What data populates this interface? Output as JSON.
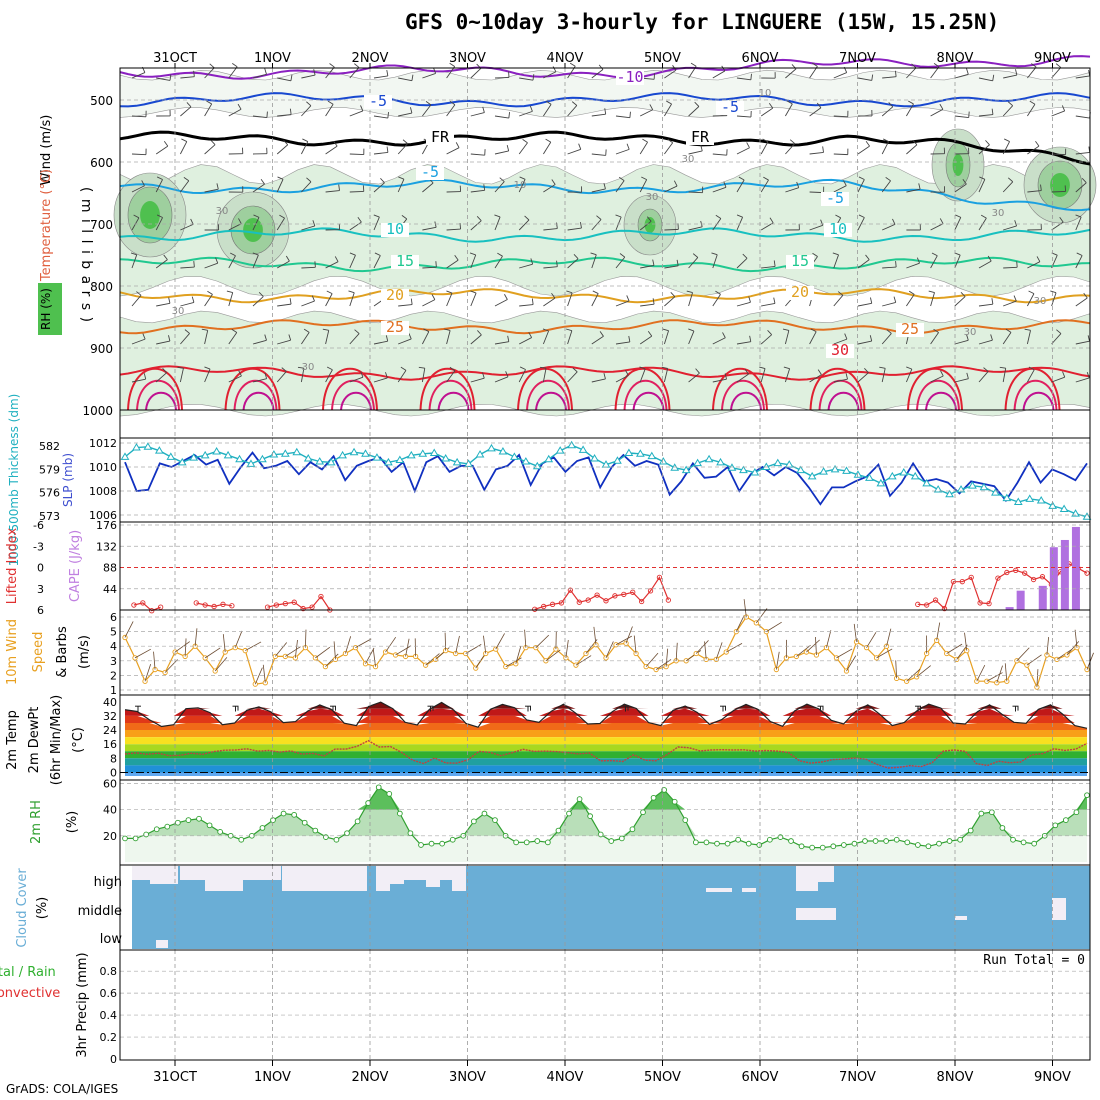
{
  "title": "GFS 0~10day 3-hourly for LINGUERE (15W, 15.25N)",
  "credit": "GrADS: COLA/IGES",
  "x_axis": {
    "labels": [
      "31OCT",
      "1NOV",
      "2NOV",
      "3NOV",
      "4NOV",
      "5NOV",
      "6NOV",
      "7NOV",
      "8NOV",
      "9NOV"
    ]
  },
  "colors": {
    "wind_barb": "#444444",
    "rh_fill": "#dff0df",
    "rh_fill2": "#b8ddb8",
    "rh_fill3": "#4fc04f",
    "slp": "#1030c0",
    "thickness": "#20b0c0",
    "lifted_index": "#e03030",
    "cape": "#b070e0",
    "wind_speed": "#e8a020",
    "dewpoint": "#c04040",
    "rh2m": "#30a030",
    "cloud": "#6aaed6",
    "cloud_gap": "#f2eef6"
  },
  "chart_data": [
    {
      "id": "upper-air",
      "type": "contour",
      "ylabel": "Wind (m/s)",
      "ylabel_parts": [
        "RH (%)",
        "Temperature (°C)",
        "Wind (m/s)",
        "( m i l l i b a r s )"
      ],
      "y_ticks": [
        500,
        600,
        700,
        800,
        900,
        1000
      ],
      "ylim": [
        450,
        1000
      ],
      "temperature_contours": [
        {
          "label": "-10",
          "level_mb": 455
        },
        {
          "label": "-5",
          "level_mb": 500
        },
        {
          "label": "FR",
          "level_mb": 563
        },
        {
          "label": "-5",
          "level_mb": 640
        },
        {
          "label": "10",
          "level_mb": 718
        },
        {
          "label": "15",
          "level_mb": 765
        },
        {
          "label": "20",
          "level_mb": 815
        },
        {
          "label": "25",
          "level_mb": 865
        },
        {
          "label": "30",
          "level_mb": 940
        }
      ],
      "rh_labels": [
        "30",
        "30",
        "10",
        "30",
        "30",
        "30",
        "30",
        "10",
        "30",
        "30"
      ]
    },
    {
      "id": "slp-thickness",
      "type": "line",
      "ylabel_left": "1000-500mb Thickness (dm)",
      "ylabel_right": "SLP (mb)",
      "left_ticks": [
        582,
        579,
        576,
        573
      ],
      "right_ticks": [
        1012,
        1010,
        1008,
        1006
      ],
      "ylim": [
        1006,
        1012
      ],
      "series": [
        {
          "name": "SLP (mb)",
          "values": [
            1010.4,
            1008.0,
            1008.1,
            1010.3,
            1010.0,
            1010.5,
            1011.0,
            1010.2,
            1010.6,
            1008.6,
            1010.0,
            1011.2,
            1009.9,
            1010.1,
            1010.5,
            1009.4,
            1010.4,
            1009.8,
            1010.9,
            1008.9,
            1010.1,
            1010.5,
            1010.8,
            1009.6,
            1010.4,
            1008.0,
            1010.4,
            1010.9,
            1009.6,
            1010.1,
            1010.1,
            1008.1,
            1009.8,
            1010.1,
            1011.0,
            1008.5,
            1010.3,
            1010.8,
            1009.6,
            1010.5,
            1010.8,
            1008.3,
            1010.0,
            1011.0,
            1010.1,
            1010.5,
            1010.2,
            1007.7,
            1008.8,
            1010.3,
            1009.1,
            1009.2,
            1010.0,
            1008.0,
            1009.4,
            1010.0,
            1009.3,
            1010.0,
            1009.5,
            1008.3,
            1006.9,
            1008.3,
            1008.3,
            1008.8,
            1009.2,
            1010.2,
            1007.6,
            1008.7,
            1010.3,
            1008.8,
            1009.0,
            1008.7,
            1007.8,
            1008.8,
            1008.6,
            1008.4,
            1007.2,
            1008.7,
            1010.4,
            1008.7,
            1009.8,
            1009.4,
            1008.9,
            1010.3
          ]
        },
        {
          "name": "1000-500mb Thickness (dm)",
          "values": [
            580.6,
            581.8,
            581.9,
            581.4,
            580.6,
            579.9,
            580.5,
            580.8,
            581.3,
            580.8,
            580.3,
            579.7,
            580.3,
            580.9,
            581.0,
            581.2,
            580.4,
            580.0,
            579.9,
            580.8,
            581.2,
            581.0,
            580.5,
            579.9,
            580.2,
            580.8,
            581.0,
            581.1,
            580.4,
            579.9,
            579.7,
            580.9,
            581.7,
            581.3,
            580.6,
            580.0,
            579.4,
            580.3,
            581.4,
            582.1,
            581.5,
            580.4,
            579.6,
            580.1,
            581.1,
            581.0,
            580.7,
            580.0,
            579.2,
            578.9,
            579.8,
            580.3,
            579.9,
            579.2,
            578.9,
            578.6,
            579.3,
            579.8,
            579.6,
            578.9,
            578.1,
            578.7,
            579.0,
            578.8,
            578.3,
            577.9,
            577.2,
            578.1,
            578.6,
            578.1,
            577.2,
            576.4,
            575.8,
            576.4,
            576.9,
            576.7,
            576.0,
            575.3,
            574.8,
            575.2,
            575.0,
            574.3,
            573.9,
            573.3,
            572.9
          ]
        }
      ]
    },
    {
      "id": "lifted-cape",
      "type": "line+bar",
      "ylabel_left": "Lifted Index",
      "ylabel_right": "CAPE (J/kg)",
      "left_ticks": [
        "6",
        "3",
        "0",
        "-3",
        "-6"
      ],
      "right_ticks": [
        176,
        132,
        88,
        44
      ],
      "series": [
        {
          "name": "Lifted Index",
          "values": [
            null,
            5.3,
            5.0,
            6.1,
            5.6,
            null,
            null,
            null,
            5.0,
            5.3,
            5.5,
            5.2,
            5.4,
            null,
            null,
            null,
            5.6,
            5.3,
            5.1,
            4.9,
            5.8,
            5.6,
            4.1,
            6.0,
            null,
            null,
            null,
            null,
            null,
            null,
            null,
            null,
            null,
            null,
            null,
            null,
            null,
            null,
            null,
            null,
            null,
            null,
            null,
            null,
            null,
            null,
            5.9,
            5.5,
            5.2,
            5.0,
            3.2,
            4.9,
            4.6,
            3.9,
            4.7,
            4.0,
            3.8,
            3.5,
            4.8,
            3.3,
            1.4,
            4.6,
            null,
            null,
            null,
            null,
            null,
            null,
            null,
            null,
            null,
            null,
            null,
            null,
            null,
            null,
            null,
            null,
            null,
            null,
            null,
            null,
            null,
            null,
            null,
            null,
            null,
            null,
            null,
            5.2,
            5.3,
            4.6,
            5.8,
            2.0,
            2.0,
            1.4,
            5.0,
            5.1,
            1.5,
            0.7,
            0.4,
            0.8,
            1.7,
            1.3,
            2.4,
            0.6,
            -0.5,
            0.1,
            0.8
          ]
        },
        {
          "name": "CAPE (J/kg)",
          "values": [
            null,
            null,
            null,
            null,
            null,
            null,
            null,
            null,
            null,
            null,
            null,
            null,
            null,
            null,
            null,
            null,
            null,
            null,
            null,
            null,
            null,
            null,
            null,
            null,
            null,
            null,
            null,
            null,
            null,
            null,
            null,
            null,
            null,
            null,
            null,
            null,
            null,
            null,
            null,
            null,
            null,
            null,
            null,
            null,
            null,
            null,
            null,
            null,
            null,
            null,
            null,
            null,
            null,
            null,
            null,
            null,
            null,
            null,
            null,
            null,
            null,
            null,
            null,
            null,
            null,
            null,
            null,
            null,
            null,
            null,
            null,
            null,
            null,
            null,
            null,
            null,
            null,
            null,
            null,
            null,
            6,
            40,
            null,
            50,
            130,
            145,
            172,
            null
          ]
        }
      ]
    },
    {
      "id": "wind10m",
      "type": "line",
      "ylabel": "10m Wind Speed (m/s) & Barbs",
      "y_ticks": [
        1,
        2,
        3,
        4,
        5,
        6
      ],
      "ylim": [
        1,
        6
      ],
      "series": [
        {
          "name": "10m Wind Speed",
          "values": [
            4.6,
            3.2,
            1.6,
            2.4,
            2.2,
            3.6,
            3.3,
            4.0,
            3.2,
            2.3,
            3.6,
            3.9,
            3.7,
            1.4,
            1.5,
            3.3,
            3.3,
            3.2,
            3.9,
            3.2,
            2.6,
            3.1,
            3.5,
            3.9,
            2.8,
            2.6,
            3.6,
            3.4,
            3.3,
            3.3,
            2.7,
            3.1,
            3.7,
            3.5,
            3.5,
            2.5,
            3.5,
            3.8,
            2.6,
            2.8,
            3.9,
            3.9,
            3.0,
            3.8,
            3.2,
            2.7,
            3.5,
            4.1,
            3.2,
            4.1,
            4.2,
            3.5,
            2.6,
            2.4,
            2.6,
            3.0,
            3.0,
            3.5,
            3.1,
            3.1,
            3.6,
            5.0,
            6.0,
            5.6,
            5.0,
            2.4,
            3.2,
            3.3,
            3.6,
            3.4,
            3.9,
            3.2,
            2.3,
            4.3,
            3.9,
            3.2,
            4.0,
            1.8,
            1.6,
            1.9,
            3.5,
            4.4,
            3.5,
            3.1,
            3.7,
            1.6,
            1.6,
            1.5,
            1.6,
            3.0,
            2.7,
            1.2,
            3.4,
            3.1,
            3.4,
            3.9,
            2.4
          ]
        }
      ]
    },
    {
      "id": "temp2m",
      "type": "area",
      "ylabel": "2m Temp 2m DewPt (6hr Min/Max) (°C)",
      "y_ticks": [
        0,
        8,
        16,
        24,
        32,
        40
      ],
      "ylim": [
        -2,
        41
      ],
      "series": [
        {
          "name": "2m Temp",
          "values": [
            35.5,
            34.5,
            29.8,
            26.0,
            27.0,
            36.1,
            36.6,
            33.8,
            27.0,
            28.0,
            35.2,
            37.1,
            34.2,
            28.2,
            28.8,
            34.7,
            38.2,
            35.4,
            27.9,
            26.5,
            37.3,
            39.8,
            36.1,
            28.4,
            26.9,
            35.7,
            39.6,
            35.3,
            27.7,
            25.6,
            35.7,
            38.5,
            36.6,
            29.7,
            28.4,
            34.6,
            38.6,
            33.6,
            27.4,
            27.7,
            34.3,
            38.6,
            36.2,
            28.2,
            26.5,
            35.1,
            37.6,
            33.9,
            27.2,
            29.9,
            35.2,
            38.5,
            35.6,
            28.8,
            26.1,
            34.9,
            38.6,
            35.9,
            29.5,
            27.4,
            34.5,
            38.3,
            32.8,
            26.5,
            28.3,
            34.7,
            38.7,
            36.4,
            28.0,
            27.4,
            34.4,
            38.3,
            33.0,
            28.4,
            27.8,
            35.7,
            38.3,
            33.0,
            26.5,
            25.0
          ]
        },
        {
          "name": "2m DewPt",
          "values": [
            10.4,
            11.1,
            10.3,
            10.9,
            9.5,
            9.7,
            10.9,
            10.2,
            11.8,
            12.6,
            12.7,
            13.4,
            12.1,
            12.4,
            11.5,
            12.2,
            10.4,
            10.8,
            9.4,
            13.2,
            13.3,
            14.8,
            18.0,
            14.4,
            14.7,
            11.4,
            7.0,
            5.1,
            8.2,
            5.4,
            5.3,
            7.1,
            11.9,
            11.4,
            9.5,
            11.2,
            13.1,
            11.9,
            12.1,
            11.8,
            11.3,
            10.5,
            11.0,
            6.6,
            6.7,
            6.2,
            10.0,
            7.0,
            6.6,
            10.0,
            14.4,
            14.0,
            12.2,
            12.7,
            12.9,
            12.7,
            12.8,
            12.1,
            12.4,
            12.1,
            11.3,
            6.6,
            5.3,
            5.9,
            7.3,
            7.6,
            8.2,
            7.5,
            4.6,
            2.5,
            2.9,
            3.9,
            3.3,
            5.5,
            12.1,
            12.7,
            11.9,
            5.0,
            4.0,
            6.4,
            5.5,
            5.9,
            10.0,
            10.7,
            13.4,
            12.5,
            13.2,
            16.5
          ]
        }
      ]
    },
    {
      "id": "rh2m",
      "type": "area",
      "ylabel": "2m RH (%)",
      "y_ticks": [
        20,
        40,
        60
      ],
      "ylim": [
        0,
        60
      ],
      "series": [
        {
          "name": "2m RH",
          "values": [
            18,
            18,
            21,
            25,
            27,
            30,
            32,
            33,
            28,
            23,
            20,
            17,
            20,
            26,
            32,
            37,
            36,
            30,
            24,
            19,
            17,
            22,
            31,
            45,
            57,
            52,
            37,
            22,
            13,
            14,
            14,
            17,
            20,
            31,
            37,
            32,
            20,
            15,
            15,
            16,
            15,
            24,
            37,
            48,
            35,
            21,
            16,
            18,
            25,
            38,
            49,
            55,
            46,
            32,
            15,
            15,
            14,
            14,
            17,
            14,
            13,
            17,
            19,
            16,
            12,
            11,
            11,
            12,
            13,
            14,
            16,
            16,
            16,
            17,
            15,
            13,
            12,
            14,
            16,
            17,
            24,
            37,
            38,
            26,
            17,
            15,
            14,
            20,
            28,
            32,
            38,
            51
          ]
        }
      ]
    },
    {
      "id": "cloud-cover",
      "type": "heatmap",
      "ylabel": "Cloud Cover (%)",
      "row_labels": [
        "high",
        "middle",
        "low"
      ]
    },
    {
      "id": "precip",
      "type": "bar",
      "ylabel": "3hr Precip (mm)",
      "ylabel_left": [
        "Total / Rain",
        "Convective"
      ],
      "y_ticks": [
        "0",
        "0.2",
        "0.4",
        "0.6",
        "0.8"
      ],
      "ylim": [
        0,
        1
      ],
      "run_total": "Run Total = 0",
      "values": []
    }
  ]
}
